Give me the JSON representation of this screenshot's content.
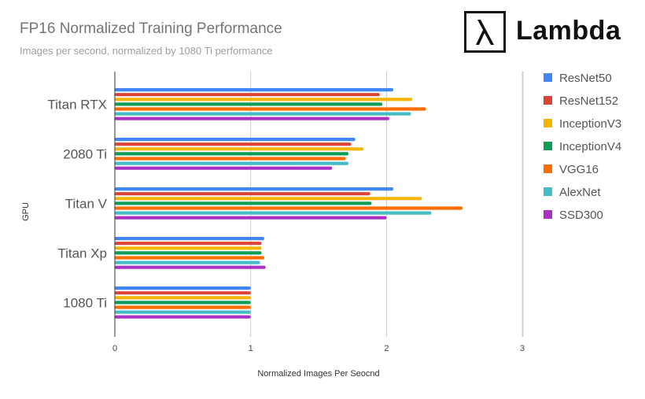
{
  "brand": {
    "wordmark": "Lambda",
    "symbol": "lambda-symbol"
  },
  "chart_data": {
    "type": "bar",
    "orientation": "horizontal",
    "title": "FP16 Normalized Training Performance",
    "subtitle": "Images per second, normalized by 1080 Ti performance",
    "xlabel": "Normalized Images Per Seocnd",
    "ylabel": "GPU",
    "xlim": [
      0,
      3
    ],
    "xticks": [
      0,
      1,
      2,
      3
    ],
    "grid": true,
    "legend_position": "right",
    "categories": [
      "Titan RTX",
      "2080 Ti",
      "Titan V",
      "Titan Xp",
      "1080 Ti"
    ],
    "series": [
      {
        "name": "ResNet50",
        "color": "#4285f4",
        "values": [
          2.05,
          1.77,
          2.05,
          1.1,
          1.0
        ]
      },
      {
        "name": "ResNet152",
        "color": "#db4437",
        "values": [
          1.95,
          1.74,
          1.88,
          1.08,
          1.0
        ]
      },
      {
        "name": "InceptionV3",
        "color": "#f4b400",
        "values": [
          2.19,
          1.83,
          2.26,
          1.08,
          1.0
        ]
      },
      {
        "name": "InceptionV4",
        "color": "#0f9d58",
        "values": [
          1.97,
          1.72,
          1.89,
          1.08,
          1.0
        ]
      },
      {
        "name": "VGG16",
        "color": "#ff6d01",
        "values": [
          2.29,
          1.7,
          2.56,
          1.1,
          1.0
        ]
      },
      {
        "name": "AlexNet",
        "color": "#46bdc6",
        "values": [
          2.18,
          1.72,
          2.33,
          1.07,
          1.0
        ]
      },
      {
        "name": "SSD300",
        "color": "#ab30c4",
        "values": [
          2.02,
          1.6,
          2.0,
          1.11,
          1.0
        ]
      }
    ]
  }
}
